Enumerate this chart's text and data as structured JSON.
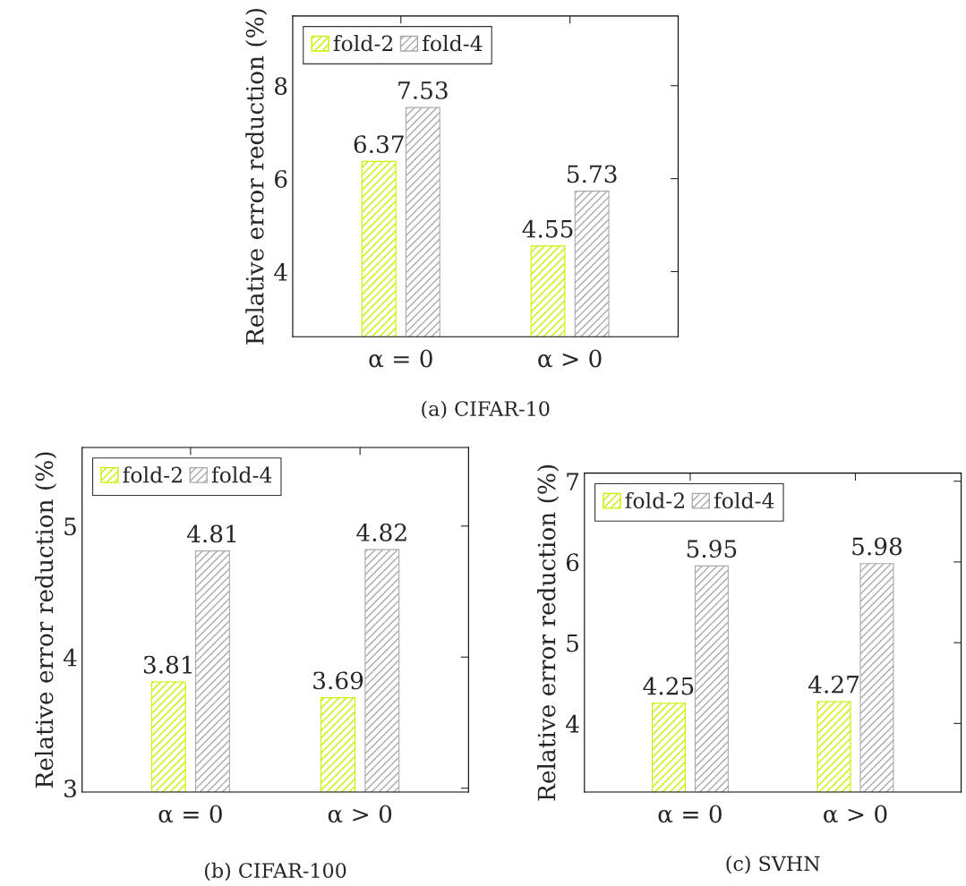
{
  "chart_data": [
    {
      "type": "bar",
      "title": "(a) CIFAR-10",
      "ylabel": "Relative error reduction (%)",
      "categories": [
        "α = 0",
        "α > 0"
      ],
      "series": [
        {
          "name": "fold-2",
          "color": "#ccee00",
          "values": [
            6.37,
            4.55
          ]
        },
        {
          "name": "fold-4",
          "color": "#aaaaaa",
          "values": [
            7.53,
            5.73
          ]
        }
      ],
      "ylim": [
        2.6,
        9.5
      ],
      "yticks": [
        4,
        6,
        8
      ],
      "data_labels": true,
      "legend": "top left",
      "grid": false
    },
    {
      "type": "bar",
      "title": "(b) CIFAR-100",
      "ylabel": "Relative error reduction (%)",
      "categories": [
        "α = 0",
        "α > 0"
      ],
      "series": [
        {
          "name": "fold-2",
          "color": "#ccee00",
          "values": [
            3.81,
            3.69
          ]
        },
        {
          "name": "fold-4",
          "color": "#aaaaaa",
          "values": [
            4.81,
            4.82
          ]
        }
      ],
      "ylim": [
        2.97,
        5.6
      ],
      "yticks": [
        3,
        4,
        5
      ],
      "data_labels": true,
      "legend": "top left",
      "grid": false
    },
    {
      "type": "bar",
      "title": "(c) SVHN",
      "ylabel": "Relative error reduction (%)",
      "categories": [
        "α = 0",
        "α > 0"
      ],
      "series": [
        {
          "name": "fold-2",
          "color": "#ccee00",
          "values": [
            4.25,
            4.27
          ]
        },
        {
          "name": "fold-4",
          "color": "#aaaaaa",
          "values": [
            5.95,
            5.98
          ]
        }
      ],
      "ylim": [
        3.15,
        7.1
      ],
      "yticks": [
        4,
        5,
        6,
        7
      ],
      "data_labels": true,
      "legend": "top left",
      "grid": false
    }
  ]
}
